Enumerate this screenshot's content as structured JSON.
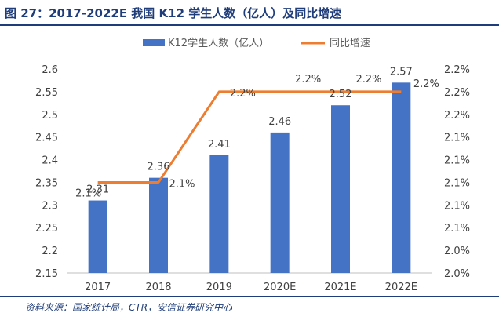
{
  "figure": {
    "title": "图 27：2017-2022E 我国 K12 学生人数（亿人）及同比增速",
    "source": "资料来源：国家统计局，CTR，安信证券研究中心"
  },
  "chart_data": {
    "type": "bar",
    "categories": [
      "2017",
      "2018",
      "2019",
      "2020E",
      "2021E",
      "2022E"
    ],
    "series": [
      {
        "name": "K12学生人数（亿人）",
        "type": "bar",
        "axis": "left",
        "color": "#4472c4",
        "values": [
          2.31,
          2.36,
          2.41,
          2.46,
          2.52,
          2.57
        ],
        "labels": [
          "2.31",
          "2.36",
          "2.41",
          "2.46",
          "2.52",
          "2.57"
        ]
      },
      {
        "name": "同比增速",
        "type": "line",
        "axis": "right",
        "color": "#ed7d31",
        "values": [
          2.1,
          2.1,
          2.2,
          2.2,
          2.2,
          2.2
        ],
        "labels": [
          "2.1%",
          "2.1%",
          "2.2%",
          "2.2%",
          "2.2%",
          "2.2%"
        ]
      }
    ],
    "y_left": {
      "ylim": [
        2.15,
        2.6
      ],
      "ticks": [
        "2.15",
        "2.2",
        "2.25",
        "2.3",
        "2.35",
        "2.4",
        "2.45",
        "2.5",
        "2.55",
        "2.6"
      ]
    },
    "y_right": {
      "ylim": [
        2.0,
        2.225
      ],
      "ticks": [
        "2.0%",
        "2.0%",
        "2.1%",
        "2.1%",
        "2.1%",
        "2.1%",
        "2.1%",
        "2.2%",
        "2.2%",
        "2.2%"
      ]
    },
    "legend": {
      "position": "top"
    },
    "grid": false
  }
}
